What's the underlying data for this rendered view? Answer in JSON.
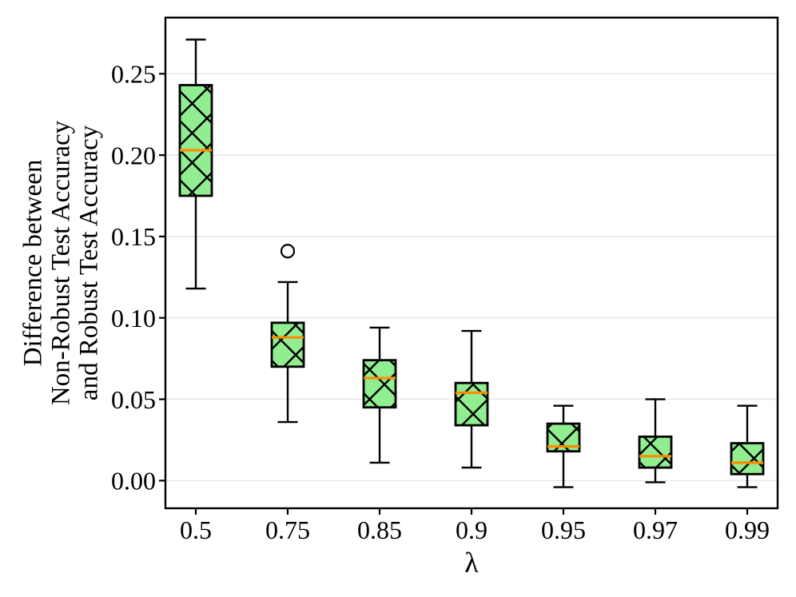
{
  "figure": {
    "background": "#ffffff",
    "ylabel_lines": [
      "Difference between",
      "Non-Robust Test Accuracy",
      "and Robust Test Accuracy"
    ],
    "xlabel": "λ"
  },
  "chart_data": {
    "type": "boxplot",
    "title": "",
    "xlabel": "λ",
    "ylabel": "Difference between Non-Robust Test Accuracy and Robust Test Accuracy",
    "categories": [
      "0.5",
      "0.75",
      "0.85",
      "0.9",
      "0.95",
      "0.97",
      "0.99"
    ],
    "yticks": [
      0.0,
      0.05,
      0.1,
      0.15,
      0.2,
      0.25
    ],
    "ytick_labels": [
      "0.00",
      "0.05",
      "0.10",
      "0.15",
      "0.20",
      "0.25"
    ],
    "ylim": [
      -0.017,
      0.2845
    ],
    "grid": "horizontal-only",
    "legend_position": "none",
    "boxes": [
      {
        "label": "0.5",
        "whislo": 0.118,
        "q1": 0.175,
        "med": 0.203,
        "q3": 0.243,
        "whishi": 0.271,
        "fliers": []
      },
      {
        "label": "0.75",
        "whislo": 0.036,
        "q1": 0.07,
        "med": 0.088,
        "q3": 0.097,
        "whishi": 0.122,
        "fliers": [
          0.141
        ]
      },
      {
        "label": "0.85",
        "whislo": 0.011,
        "q1": 0.045,
        "med": 0.063,
        "q3": 0.074,
        "whishi": 0.094,
        "fliers": []
      },
      {
        "label": "0.9",
        "whislo": 0.008,
        "q1": 0.034,
        "med": 0.054,
        "q3": 0.06,
        "whishi": 0.092,
        "fliers": []
      },
      {
        "label": "0.95",
        "whislo": -0.004,
        "q1": 0.018,
        "med": 0.021,
        "q3": 0.035,
        "whishi": 0.046,
        "fliers": []
      },
      {
        "label": "0.97",
        "whislo": -0.001,
        "q1": 0.008,
        "med": 0.015,
        "q3": 0.027,
        "whishi": 0.05,
        "fliers": []
      },
      {
        "label": "0.99",
        "whislo": -0.004,
        "q1": 0.004,
        "med": 0.011,
        "q3": 0.023,
        "whishi": 0.046,
        "fliers": []
      }
    ],
    "colors": {
      "box_fill": "#90EE90",
      "box_edge": "#000000",
      "hatch": "#000000",
      "median": "#FF8C00",
      "whisker": "#000000",
      "flier_edge": "#000000",
      "flier_fill": "#ffffff",
      "gridline": "#E9E9E9",
      "spine": "#000000",
      "text": "#000000"
    },
    "style": {
      "hatch_pattern": "x",
      "boxes_filled": true,
      "notch": false
    }
  }
}
